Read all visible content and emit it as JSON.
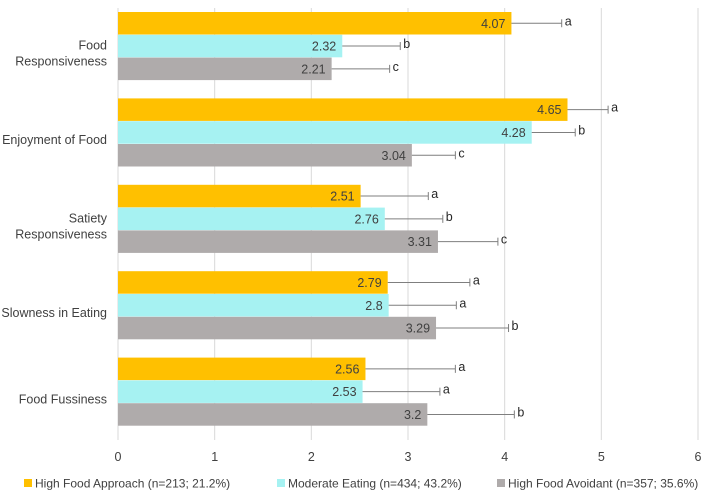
{
  "chart_data": {
    "type": "bar",
    "orientation": "horizontal",
    "categories": [
      [
        "Food",
        "Responsiveness"
      ],
      [
        "Enjoyment of Food"
      ],
      [
        "Satiety",
        "Responsiveness"
      ],
      [
        "Slowness in Eating"
      ],
      [
        "Food Fussiness"
      ]
    ],
    "series": [
      {
        "name": "High Food Approach (n=213; 21.2%)",
        "color": "#FFC000",
        "values": [
          4.07,
          4.65,
          2.51,
          2.79,
          2.56
        ],
        "value_labels": [
          "4.07",
          "4.65",
          "2.51",
          "2.79",
          "2.56"
        ],
        "errors": [
          0.52,
          0.42,
          0.7,
          0.85,
          0.93
        ],
        "significance": [
          "a",
          "a",
          "a",
          "a",
          "a"
        ]
      },
      {
        "name": "Moderate Eating (n=434; 43.2%)",
        "color": "#A6F2F2",
        "values": [
          2.32,
          4.28,
          2.76,
          2.8,
          2.53
        ],
        "value_labels": [
          "2.32",
          "4.28",
          "2.76",
          "2.8",
          "2.53"
        ],
        "errors": [
          0.6,
          0.45,
          0.6,
          0.7,
          0.8
        ],
        "significance": [
          "b",
          "b",
          "b",
          "a",
          "a"
        ]
      },
      {
        "name": "High Food Avoidant (n=357; 35.6%)",
        "color": "#AFABAB",
        "values": [
          2.21,
          3.04,
          3.31,
          3.29,
          3.2
        ],
        "value_labels": [
          "2.21",
          "3.04",
          "3.31",
          "3.29",
          "3.2"
        ],
        "errors": [
          0.6,
          0.45,
          0.62,
          0.75,
          0.9
        ],
        "significance": [
          "c",
          "c",
          "c",
          "b",
          "b"
        ]
      }
    ],
    "x_ticks": [
      "0",
      "1",
      "2",
      "3",
      "4",
      "5",
      "6"
    ],
    "xlim": [
      0,
      6
    ],
    "grid": true,
    "legend_position": "bottom"
  }
}
